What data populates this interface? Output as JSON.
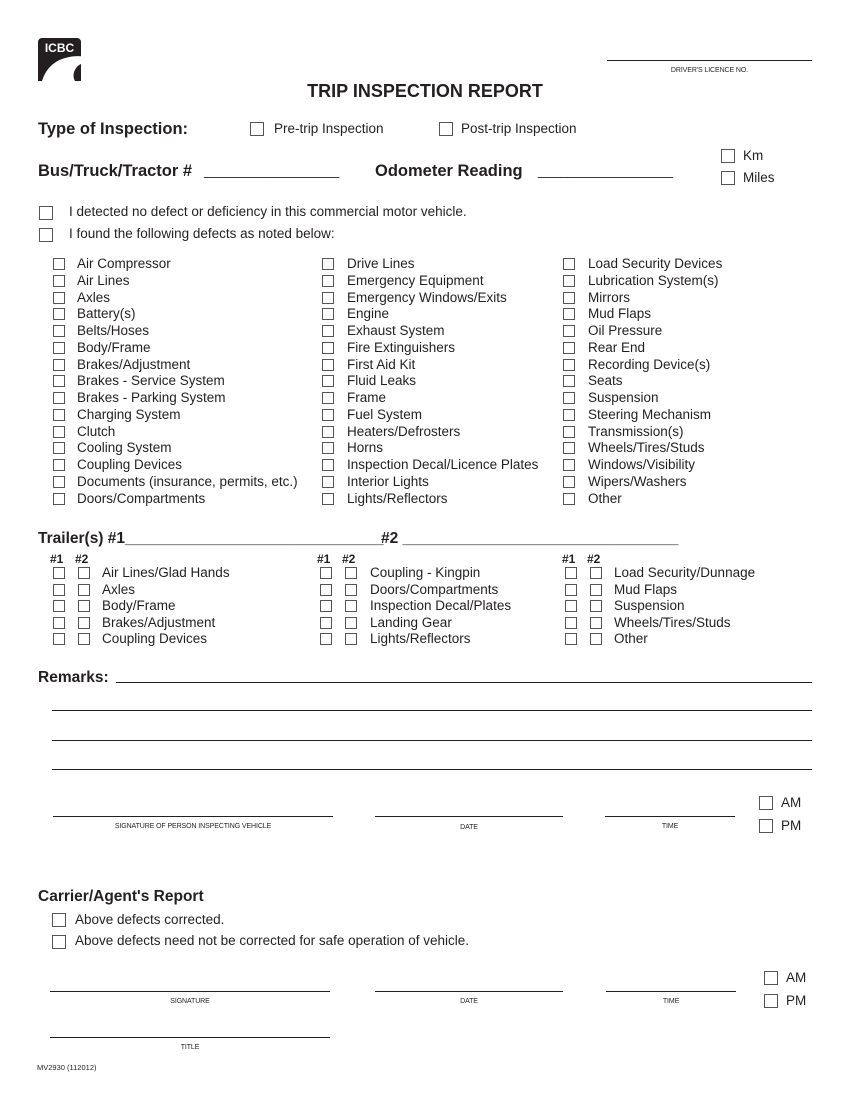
{
  "logo": {
    "text": "ICBC"
  },
  "header": {
    "licence_label": "DRIVER'S LICENCE NO.",
    "title": "TRIP INSPECTION REPORT"
  },
  "inspection_type": {
    "label": "Type of Inspection:",
    "options": [
      "Pre-trip Inspection",
      "Post-trip Inspection"
    ]
  },
  "vehicle": {
    "bus_label": "Bus/Truck/Tractor #",
    "bus_blank": "__________________",
    "odometer_label": "Odometer Reading",
    "odometer_blank": "__________________",
    "units": [
      "Km",
      "Miles"
    ]
  },
  "statements": [
    "I detected no defect or deficiency in this commercial motor vehicle.",
    "I found the following defects as noted below:"
  ],
  "defects": {
    "col1": [
      "Air Compressor",
      "Air Lines",
      "Axles",
      "Battery(s)",
      "Belts/Hoses",
      "Body/Frame",
      "Brakes/Adjustment",
      "Brakes - Service System",
      "Brakes - Parking System",
      "Charging System",
      "Clutch",
      "Cooling System",
      "Coupling Devices",
      "Documents (insurance, permits, etc.)",
      "Doors/Compartments"
    ],
    "col2": [
      "Drive Lines",
      "Emergency Equipment",
      "Emergency Windows/Exits",
      "Engine",
      "Exhaust System",
      "Fire Extinguishers",
      "First Aid Kit",
      "Fluid Leaks",
      "Frame",
      "Fuel System",
      "Heaters/Defrosters",
      "Horns",
      "Inspection Decal/Licence Plates",
      "Interior Lights",
      "Lights/Reflectors"
    ],
    "col3": [
      "Load Security Devices",
      "Lubrication System(s)",
      "Mirrors",
      "Mud Flaps",
      "Oil Pressure",
      "Rear End",
      "Recording Device(s)",
      "Seats",
      "Suspension",
      "Steering Mechanism",
      "Transmission(s)",
      "Wheels/Tires/Studs",
      "Windows/Visibility",
      "Wipers/Washers",
      "Other"
    ]
  },
  "trailers": {
    "label1": "Trailer(s) #1______________________________",
    "label2": "#2 ________________________________",
    "col_headers": [
      "#1",
      "#2"
    ],
    "col1": [
      "Air Lines/Glad Hands",
      "Axles",
      "Body/Frame",
      "Brakes/Adjustment",
      "Coupling Devices"
    ],
    "col2": [
      "Coupling - Kingpin",
      "Doors/Compartments",
      "Inspection Decal/Plates",
      "Landing Gear",
      "Lights/Reflectors"
    ],
    "col3": [
      "Load Security/Dunnage",
      "Mud Flaps",
      "Suspension",
      "Wheels/Tires/Studs",
      "Other"
    ]
  },
  "remarks": {
    "label": "Remarks:"
  },
  "inspector_sign": {
    "signature": "SIGNATURE OF PERSON INSPECTING VEHICLE",
    "date": "DATE",
    "time": "TIME",
    "ampm": [
      "AM",
      "PM"
    ]
  },
  "carrier": {
    "title": "Carrier/Agent's Report",
    "options": [
      "Above defects corrected.",
      "Above defects need not be corrected for safe operation of vehicle."
    ],
    "signature": "SIGNATURE",
    "date": "DATE",
    "time": "TIME",
    "ampm": [
      "AM",
      "PM"
    ],
    "title_label": "TITLE"
  },
  "form_number": "MV2930 (112012)"
}
